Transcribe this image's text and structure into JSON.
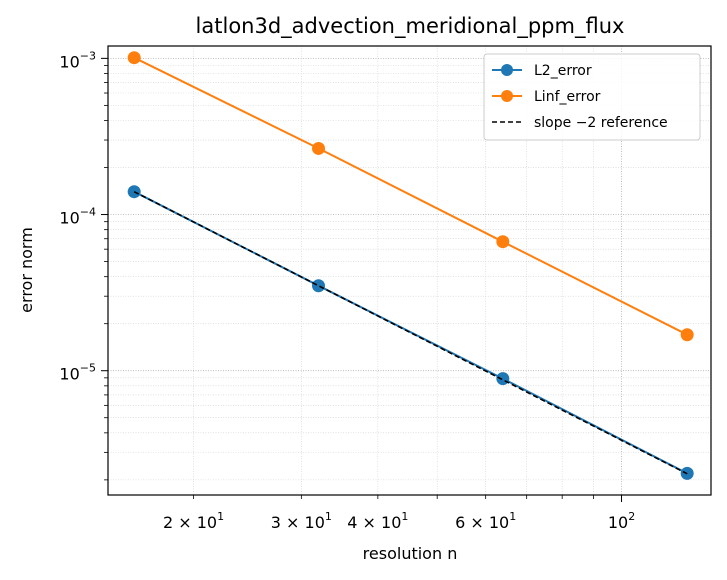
{
  "chart_data": {
    "type": "line",
    "title": "latlon3d_advection_meridional_ppm_flux",
    "xlabel": "resolution n",
    "ylabel": "error norm",
    "xscale": "log",
    "yscale": "log",
    "xlim": [
      14.5,
      140
    ],
    "ylim": [
      1.6e-06,
      0.0012
    ],
    "grid": true,
    "legend_position": "top-right",
    "x": [
      16,
      32,
      64,
      128
    ],
    "series": [
      {
        "name": "L2_error",
        "values": [
          0.00014,
          3.5e-05,
          8.9e-06,
          2.2e-06
        ],
        "color": "#1f77b4",
        "style": "solid",
        "marker": "circle"
      },
      {
        "name": "Linf_error",
        "values": [
          0.00101,
          0.000265,
          6.7e-05,
          1.7e-05
        ],
        "color": "#ff7f0e",
        "style": "solid",
        "marker": "circle"
      },
      {
        "name": "slope −2 reference",
        "values": [
          0.00014,
          3.5e-05,
          8.75e-06,
          2.1875e-06
        ],
        "color": "#000000",
        "style": "dashed",
        "marker": "none"
      }
    ],
    "x_ticks": [
      {
        "value": 20,
        "base": "2 × 10",
        "exp": "1"
      },
      {
        "value": 30,
        "base": "3 × 10",
        "exp": "1"
      },
      {
        "value": 40,
        "base": "4 × 10",
        "exp": "1"
      },
      {
        "value": 60,
        "base": "6 × 10",
        "exp": "1"
      },
      {
        "value": 100,
        "base": "10",
        "exp": "2"
      }
    ],
    "y_ticks": [
      {
        "value": 1e-05,
        "base": "10",
        "exp": "−5"
      },
      {
        "value": 0.0001,
        "base": "10",
        "exp": "−4"
      },
      {
        "value": 0.001,
        "base": "10",
        "exp": "−3"
      }
    ]
  }
}
